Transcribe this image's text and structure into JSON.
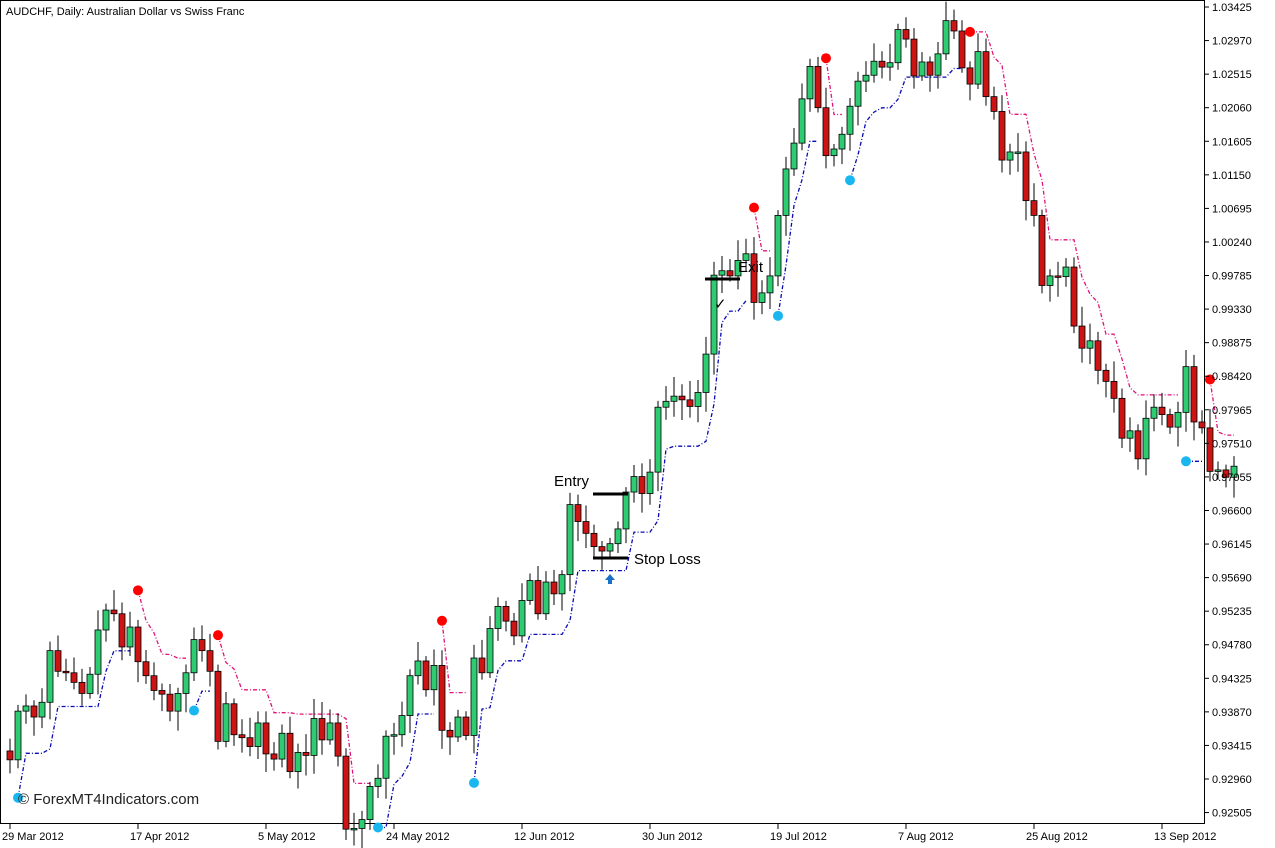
{
  "window": {
    "symbol_title": "AUDCHF, Daily:  Australian Dollar vs Swiss Franc",
    "watermark": "© ForexMT4Indicators.com"
  },
  "colors": {
    "background": "#ffffff",
    "bull_candle": "#2ecc71",
    "bear_candle": "#cc1414",
    "wick": "#000000",
    "upper_trail": "#e0147a",
    "lower_trail": "#0a0ab4",
    "sell_dot": "#ff0000",
    "buy_dot": "#1ab6ef",
    "arrow": "#1a6fc8"
  },
  "chart_data": {
    "type": "candlestick",
    "title": "AUDCHF, Daily:  Australian Dollar vs Swiss Franc",
    "ylim": [
      0.9235,
      1.0352
    ],
    "y_ticks": [
      "1.03425",
      "1.02970",
      "1.02515",
      "1.02060",
      "1.01605",
      "1.01150",
      "1.00695",
      "1.00240",
      "0.99785",
      "0.99330",
      "0.98875",
      "0.98420",
      "0.97965",
      "0.97510",
      "0.97055",
      "0.96600",
      "0.96145",
      "0.95690",
      "0.95235",
      "0.94780",
      "0.94325",
      "0.93870",
      "0.93415",
      "0.92960",
      "0.92505"
    ],
    "x_tick_labels": [
      {
        "i": 0,
        "label": "29 Mar 2012"
      },
      {
        "i": 16,
        "label": "17 Apr 2012"
      },
      {
        "i": 32,
        "label": "5 May 2012"
      },
      {
        "i": 48,
        "label": "24 May 2012"
      },
      {
        "i": 64,
        "label": "12 Jun 2012"
      },
      {
        "i": 80,
        "label": "30 Jun 2012"
      },
      {
        "i": 96,
        "label": "19 Jul 2012"
      },
      {
        "i": 112,
        "label": "7 Aug 2012"
      },
      {
        "i": 128,
        "label": "25 Aug 2012"
      },
      {
        "i": 144,
        "label": "13 Sep 2012"
      }
    ],
    "close": [
      0.9322,
      0.9388,
      0.9395,
      0.938,
      0.94,
      0.947,
      0.9442,
      0.944,
      0.9427,
      0.9412,
      0.9438,
      0.9498,
      0.9525,
      0.952,
      0.9475,
      0.9502,
      0.9455,
      0.9436,
      0.9416,
      0.9411,
      0.9388,
      0.9412,
      0.944,
      0.9485,
      0.947,
      0.9442,
      0.9347,
      0.9398,
      0.9356,
      0.9352,
      0.934,
      0.9372,
      0.933,
      0.9323,
      0.9358,
      0.9306,
      0.9332,
      0.9328,
      0.9378,
      0.9349,
      0.9372,
      0.9327,
      0.9228,
      0.9229,
      0.9241,
      0.9286,
      0.9297,
      0.9354,
      0.9356,
      0.9382,
      0.9436,
      0.9456,
      0.9417,
      0.945,
      0.9362,
      0.9353,
      0.938,
      0.9355,
      0.946,
      0.944,
      0.95,
      0.953,
      0.951,
      0.949,
      0.9538,
      0.9565,
      0.952,
      0.9563,
      0.9547,
      0.9573,
      0.9668,
      0.9645,
      0.9629,
      0.9611,
      0.9605,
      0.9615,
      0.9635,
      0.9685,
      0.9706,
      0.9683,
      0.9712,
      0.98,
      0.9808,
      0.9815,
      0.981,
      0.9801,
      0.982,
      0.9872,
      0.9979,
      0.9985,
      0.9978,
      0.9999,
      1.0008,
      0.9942,
      0.9955,
      0.9978,
      1.006,
      1.0123,
      1.0158,
      1.0218,
      1.0262,
      1.0206,
      1.0141,
      1.015,
      1.017,
      1.0208,
      1.0242,
      1.025,
      1.0269,
      1.0261,
      1.0267,
      1.0312,
      1.0299,
      1.0249,
      1.0268,
      1.025,
      1.0279,
      1.0324,
      1.031,
      1.026,
      1.0238,
      1.0282,
      1.0221,
      1.0201,
      1.0135,
      1.0146,
      1.0146,
      1.008,
      1.006,
      0.9965,
      0.9978,
      0.9977,
      0.999,
      0.991,
      0.988,
      0.989,
      0.985,
      0.9835,
      0.9812,
      0.9758,
      0.9768,
      0.973,
      0.9785,
      0.98,
      0.979,
      0.9773,
      0.9793,
      0.9855,
      0.978,
      0.9772,
      0.9713,
      0.9715,
      0.9705,
      0.972
    ]
  },
  "annotations": {
    "entry": "Entry",
    "exit": "Exit",
    "stop_loss": "Stop Loss",
    "check": "✓"
  }
}
